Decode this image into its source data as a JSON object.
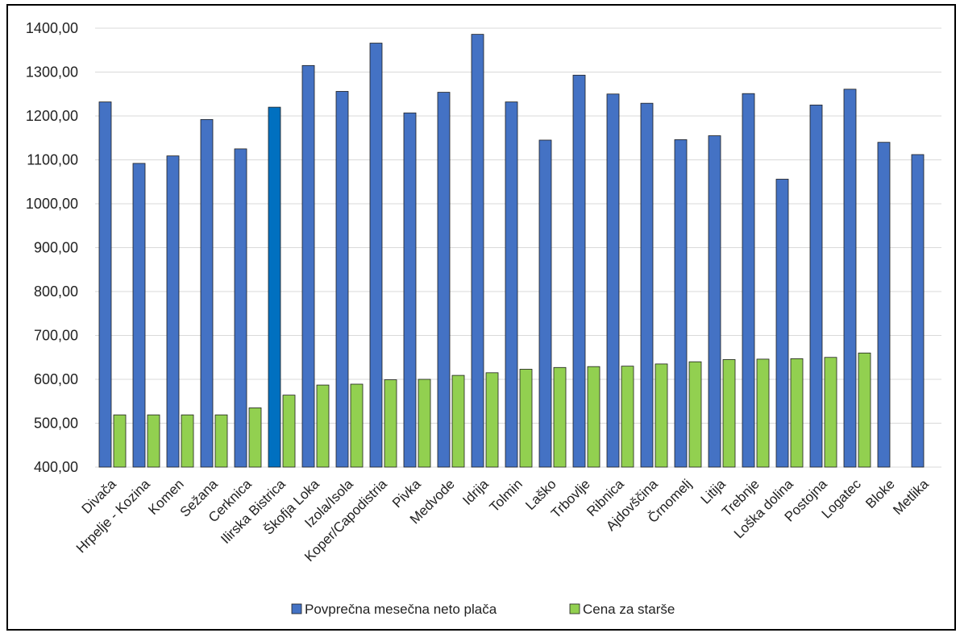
{
  "chart_data": {
    "type": "bar",
    "title": "",
    "xlabel": "",
    "ylabel": "",
    "ylim": [
      400,
      1400
    ],
    "y_ticks": [
      "400,00",
      "500,00",
      "600,00",
      "700,00",
      "800,00",
      "900,00",
      "1000,00",
      "1100,00",
      "1200,00",
      "1300,00",
      "1400,00"
    ],
    "grid": true,
    "legend_position": "bottom",
    "categories": [
      "Divača",
      "Hrpelje - Kozina",
      "Komen",
      "Sežana",
      "Cerknica",
      "Ilirska Bistrica",
      "Škofja Loka",
      "Izola/Isola",
      "Koper/Capodistria",
      "Pivka",
      "Medvode",
      "Idrija",
      "Tolmin",
      "Laško",
      "Trbovlje",
      "Ribnica",
      "Ajdovščina",
      "Črnomelj",
      "Litija",
      "Trebnje",
      "Loška dolina",
      "Postojna",
      "Logatec",
      "Bloke",
      "Metlika"
    ],
    "series": [
      {
        "name": "Povprečna mesečna neto plača",
        "color": "#4472c4",
        "values": [
          1232,
          1092,
          1109,
          1192,
          1125,
          1220,
          1315,
          1256,
          1366,
          1207,
          1254,
          1386,
          1232,
          1145,
          1293,
          1250,
          1229,
          1146,
          1155,
          1251,
          1056,
          1225,
          1261,
          1140,
          1112
        ]
      },
      {
        "name": "Cena za starše",
        "color": "#92d050",
        "values": [
          519,
          519,
          519,
          519,
          535,
          564,
          587,
          589,
          599,
          600,
          609,
          615,
          623,
          627,
          629,
          630,
          635,
          640,
          645,
          646,
          647,
          650,
          660,
          null,
          null
        ]
      }
    ],
    "highlight": {
      "category_index": 5,
      "color": "#0070c0"
    }
  }
}
